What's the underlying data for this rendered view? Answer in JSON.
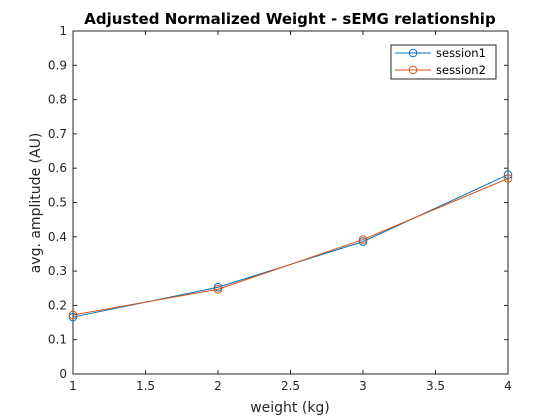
{
  "chart_data": {
    "type": "line",
    "title": "Adjusted Normalized Weight - sEMG relationship",
    "xlabel": "weight (kg)",
    "ylabel": "avg. amplitude (AU)",
    "xlim": [
      1,
      4
    ],
    "ylim": [
      0,
      1
    ],
    "xticks": [
      "1",
      "1.5",
      "2",
      "2.5",
      "3",
      "3.5",
      "4"
    ],
    "yticks": [
      "0",
      "0.1",
      "0.2",
      "0.3",
      "0.4",
      "0.5",
      "0.6",
      "0.7",
      "0.8",
      "0.9",
      "1"
    ],
    "x": [
      1,
      2,
      3,
      4
    ],
    "series": [
      {
        "name": "session1",
        "values": [
          0.166,
          0.253,
          0.386,
          0.581
        ],
        "color": "#0072BD",
        "marker": "circle"
      },
      {
        "name": "session2",
        "values": [
          0.172,
          0.247,
          0.392,
          0.57
        ],
        "color": "#D95319",
        "marker": "circle"
      }
    ],
    "grid": false,
    "legend_position": "top-right"
  }
}
